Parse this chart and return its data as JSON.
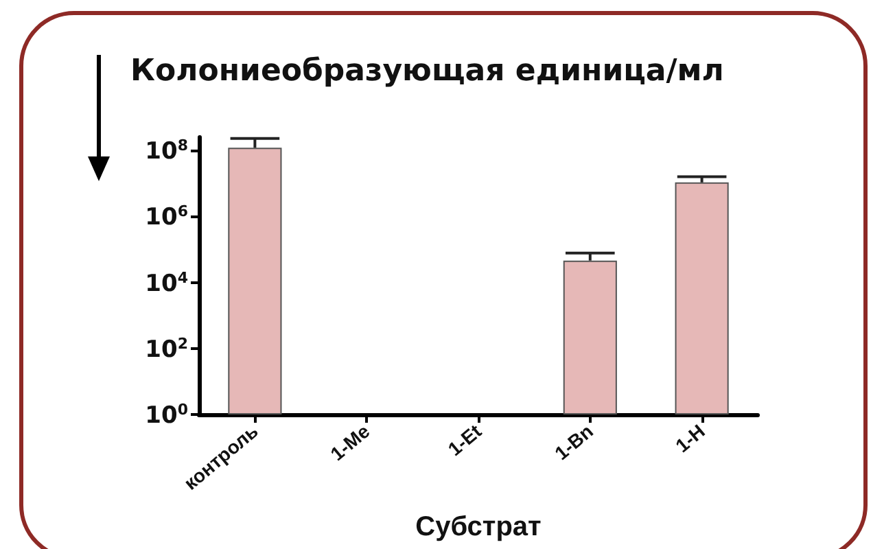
{
  "chart_data": {
    "type": "bar",
    "title": "Колониеобразующая единица/мл",
    "xlabel": "Субстрат",
    "categories": [
      "контроль",
      "1-Me",
      "1-Et",
      "1-Bn",
      "1-H"
    ],
    "values": [
      120000000.0,
      null,
      null,
      46000.0,
      10700000.0
    ],
    "errors": [
      [
        120000000.0,
        230000000.0
      ],
      null,
      null,
      [
        46000.0,
        78000.0
      ],
      [
        10700000.0,
        16000000.0
      ]
    ],
    "color": "#e6b8b7",
    "log": true,
    "ylim": [
      1,
      250000000.0
    ],
    "yticks": [
      {
        "value": 1,
        "label": "10$^{0}$"
      },
      {
        "value": 100,
        "label": "10$^{2}$"
      },
      {
        "value": 10000,
        "label": "10$^{4}$"
      },
      {
        "value": 1000000,
        "label": "10$^{6}$"
      },
      {
        "value": 100000000,
        "label": "10$^{8}$"
      }
    ],
    "grid": false
  }
}
